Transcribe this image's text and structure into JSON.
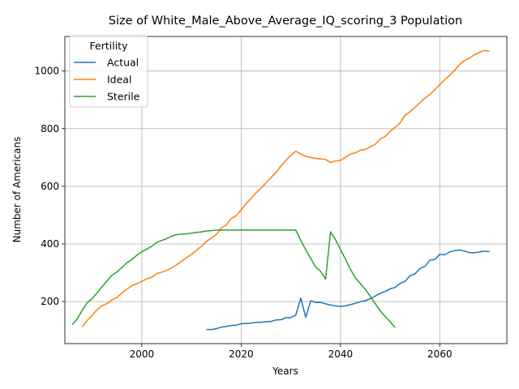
{
  "chart_data": {
    "type": "line",
    "title": "Size of White_Male_Above_Average_IQ_scoring_3 Population",
    "xlabel": "Years",
    "ylabel": "Number of Americans",
    "xlim": [
      1984.5,
      2073.5
    ],
    "ylim": [
      54,
      1120
    ],
    "x_ticks": [
      2000,
      2020,
      2040,
      2060
    ],
    "y_ticks": [
      200,
      400,
      600,
      800,
      1000
    ],
    "grid": true,
    "legend": {
      "title": "Fertility",
      "placement": "top-left"
    },
    "series": [
      {
        "name": "Actual",
        "color": "#1f77b4",
        "x": [
          2013,
          2014,
          2015,
          2016,
          2017,
          2018,
          2019,
          2020,
          2021,
          2022,
          2023,
          2024,
          2025,
          2026,
          2027,
          2028,
          2029,
          2030,
          2031,
          2032,
          2033,
          2034,
          2035,
          2036,
          2037,
          2038,
          2039,
          2040,
          2041,
          2042,
          2043,
          2044,
          2045,
          2046,
          2047,
          2048,
          2049,
          2050,
          2051,
          2052,
          2053,
          2054,
          2055,
          2056,
          2057,
          2058,
          2059,
          2060,
          2061,
          2062,
          2063,
          2064,
          2065,
          2066,
          2067,
          2068,
          2069,
          2070
        ],
        "y": [
          103,
          103,
          106,
          111,
          114,
          117,
          118,
          123,
          124,
          125,
          128,
          128,
          130,
          131,
          136,
          137,
          144,
          144,
          153,
          212,
          145,
          203,
          197,
          197,
          192,
          188,
          185,
          183,
          185,
          189,
          194,
          199,
          203,
          210,
          219,
          228,
          235,
          244,
          249,
          263,
          270,
          290,
          296,
          315,
          322,
          344,
          346,
          364,
          362,
          372,
          377,
          379,
          375,
          370,
          370,
          372,
          375,
          373
        ]
      },
      {
        "name": "Ideal",
        "color": "#ff7f0e",
        "x": [
          1988,
          1989,
          1990,
          1991,
          1992,
          1993,
          1994,
          1995,
          1996,
          1997,
          1998,
          1999,
          2000,
          2001,
          2002,
          2003,
          2004,
          2005,
          2006,
          2007,
          2008,
          2009,
          2010,
          2011,
          2012,
          2013,
          2014,
          2015,
          2016,
          2017,
          2018,
          2019,
          2020,
          2021,
          2022,
          2023,
          2024,
          2025,
          2026,
          2027,
          2028,
          2029,
          2030,
          2031,
          2032,
          2033,
          2034,
          2035,
          2036,
          2037,
          2038,
          2039,
          2040,
          2041,
          2042,
          2043,
          2044,
          2045,
          2046,
          2047,
          2048,
          2049,
          2050,
          2051,
          2052,
          2053,
          2054,
          2055,
          2056,
          2057,
          2058,
          2059,
          2060,
          2061,
          2062,
          2063,
          2064,
          2065,
          2066,
          2067,
          2068,
          2069,
          2070
        ],
        "y": [
          112,
          135,
          152,
          172,
          185,
          193,
          206,
          214,
          230,
          243,
          255,
          262,
          270,
          279,
          285,
          297,
          302,
          308,
          317,
          328,
          340,
          352,
          364,
          378,
          392,
          408,
          420,
          433,
          455,
          466,
          488,
          498,
          518,
          540,
          558,
          578,
          593,
          612,
          630,
          648,
          670,
          690,
          707,
          722,
          712,
          704,
          700,
          697,
          695,
          693,
          682,
          688,
          690,
          701,
          712,
          716,
          725,
          728,
          737,
          746,
          764,
          773,
          791,
          804,
          820,
          846,
          859,
          874,
          890,
          906,
          919,
          935,
          953,
          970,
          985,
          1003,
          1023,
          1037,
          1045,
          1057,
          1065,
          1072,
          1068
        ]
      },
      {
        "name": "Sterile",
        "color": "#2ca02c",
        "x": [
          1986,
          1987,
          1988,
          1989,
          1990,
          1991,
          1992,
          1993,
          1994,
          1995,
          1996,
          1997,
          1998,
          1999,
          2000,
          2001,
          2002,
          2003,
          2004,
          2005,
          2006,
          2007,
          2008,
          2009,
          2010,
          2011,
          2012,
          2013,
          2014,
          2015,
          2016,
          2017,
          2018,
          2019,
          2020,
          2021,
          2022,
          2023,
          2024,
          2025,
          2026,
          2027,
          2028,
          2029,
          2030,
          2031,
          2032,
          2033,
          2034,
          2035,
          2036,
          2037,
          2038,
          2039,
          2040,
          2041,
          2042,
          2043,
          2044,
          2045,
          2046,
          2047,
          2048,
          2049,
          2050,
          2051
        ],
        "y": [
          120,
          140,
          170,
          196,
          210,
          230,
          252,
          272,
          292,
          303,
          318,
          335,
          346,
          361,
          373,
          382,
          392,
          405,
          412,
          418,
          427,
          432,
          434,
          435,
          437,
          440,
          442,
          445,
          446,
          448,
          448,
          448,
          448,
          448,
          448,
          448,
          448,
          448,
          448,
          448,
          448,
          448,
          448,
          448,
          448,
          448,
          412,
          380,
          350,
          320,
          305,
          278,
          442,
          415,
          380,
          347,
          312,
          282,
          262,
          242,
          218,
          193,
          168,
          148,
          130,
          110
        ]
      }
    ]
  }
}
